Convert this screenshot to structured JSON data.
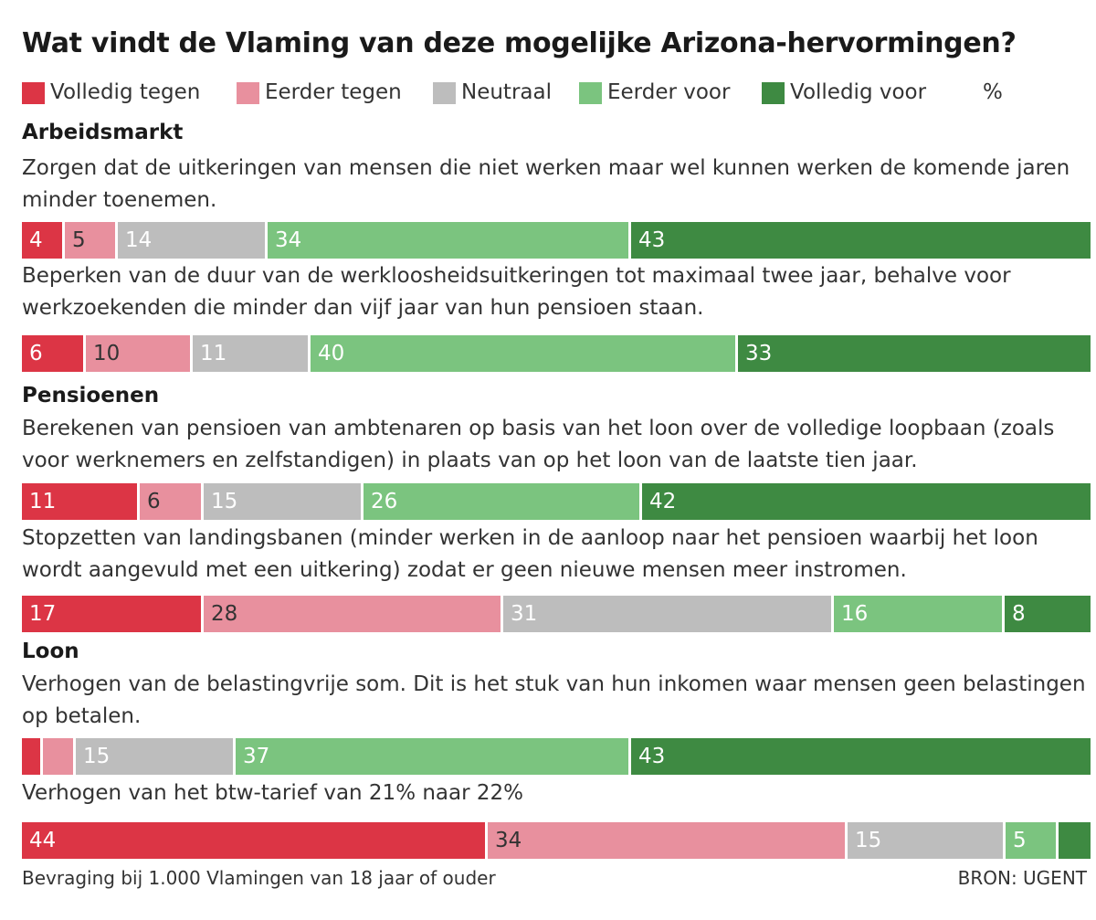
{
  "chart_data": {
    "type": "bar",
    "stacked": true,
    "orientation": "horizontal",
    "title": "Wat vindt de Vlaming van deze mogelijke Arizona-hervormingen?",
    "unit": "%",
    "legend_placement": "top",
    "categories_legend": [
      {
        "name": "Volledig tegen",
        "color": "#dc3545"
      },
      {
        "name": "Eerder tegen",
        "color": "#e8909e"
      },
      {
        "name": "Neutraal",
        "color": "#bdbdbd"
      },
      {
        "name": "Eerder voor",
        "color": "#7bc47f"
      },
      {
        "name": "Volledig voor",
        "color": "#3e8a42"
      }
    ],
    "sections": [
      {
        "heading": "Arbeidsmarkt",
        "questions": [
          {
            "text": "Zorgen dat de uitkeringen van mensen die niet werken maar wel kunnen werken de komende jaren minder toenemen.",
            "values": [
              4,
              5,
              14,
              34,
              43
            ],
            "labels": [
              "4",
              "5",
              "14",
              "34",
              "43"
            ]
          },
          {
            "text": "Beperken van de duur van de werkloosheidsuitkeringen tot maximaal twee jaar, behalve voor werkzoekenden die minder dan vijf jaar van hun pensioen staan.",
            "values": [
              6,
              10,
              11,
              40,
              33
            ],
            "labels": [
              "6",
              "10",
              "11",
              "40",
              "33"
            ]
          }
        ]
      },
      {
        "heading": "Pensioenen",
        "questions": [
          {
            "text": "Berekenen van pensioen van ambtenaren op basis van het loon over de volledige loopbaan (zoals voor werknemers en zelfstandigen) in plaats van op het loon van de laatste tien jaar.",
            "values": [
              11,
              6,
              15,
              26,
              42
            ],
            "labels": [
              "11",
              "6",
              "15",
              "26",
              "42"
            ]
          },
          {
            "text": "Stopzetten van landingsbanen (minder werken in de aanloop naar het pensioen waarbij het loon wordt aangevuld met een uitkering) zodat er geen nieuwe mensen meer instromen.",
            "values": [
              17,
              28,
              31,
              16,
              8
            ],
            "labels": [
              "17",
              "28",
              "31",
              "16",
              "8"
            ]
          }
        ]
      },
      {
        "heading": "Loon",
        "questions": [
          {
            "text": "Verhogen van de belastingvrije som. Dit is het stuk van hun inkomen waar mensen geen belastingen op betalen.",
            "values": [
              2,
              3,
              15,
              37,
              43
            ],
            "labels": [
              "",
              "",
              "15",
              "37",
              "43"
            ]
          },
          {
            "text": "Verhogen van het btw-tarief van 21% naar 22%",
            "values": [
              44,
              34,
              15,
              5,
              3
            ],
            "labels": [
              "44",
              "34",
              "15",
              "5",
              ""
            ]
          }
        ]
      }
    ],
    "footnote": "Bevraging bij 1.000 Vlamingen van 18 jaar of ouder",
    "source": "BRON: UGENT"
  }
}
